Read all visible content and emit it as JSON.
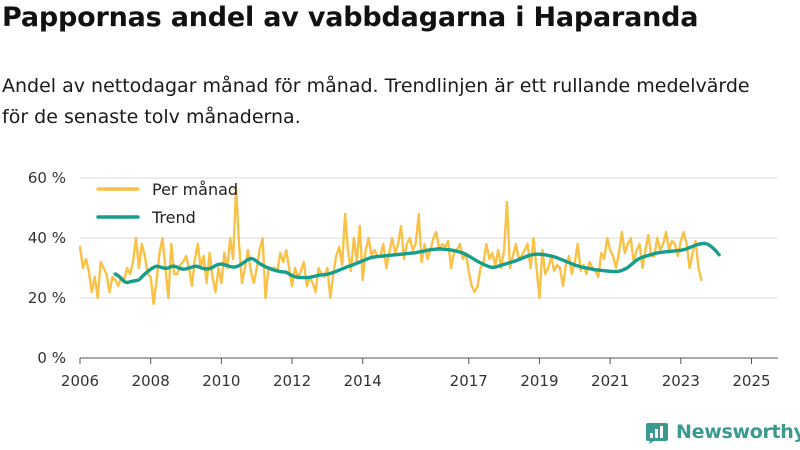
{
  "header": {
    "title": "Pappornas andel av vabbdagarna i Haparanda",
    "subtitle": "Andel av nettodagar månad för månad. Trendlinjen är ett rullande medelvärde för de senaste tolv månaderna."
  },
  "brand": {
    "name": "Newsworthy",
    "icon": "bar-chart-logo-icon",
    "color": "#3a9a8d"
  },
  "colors": {
    "monthly": "#f9c146",
    "trend": "#169d8c",
    "grid": "#dddddd",
    "axis": "#555555"
  },
  "chart_data": {
    "type": "line",
    "title": "Pappornas andel av vabbdagarna i Haparanda",
    "xlabel": "",
    "ylabel": "",
    "ylim": [
      0,
      60
    ],
    "xlim": [
      2006.0,
      2025.75
    ],
    "y_ticks": [
      0,
      20,
      40,
      60
    ],
    "y_tick_labels": [
      "0 %",
      "20 %",
      "40 %",
      "60 %"
    ],
    "x_ticks": [
      2006,
      2008,
      2010,
      2012,
      2014,
      2017,
      2019,
      2021,
      2023,
      2025
    ],
    "x_tick_labels": [
      "2006",
      "2008",
      "2010",
      "2012",
      "2014",
      "2017",
      "2019",
      "2021",
      "2023",
      "2025"
    ],
    "grid": true,
    "legend_position": "top-left",
    "series": [
      {
        "name": "Per månad",
        "x_start": 2006.0,
        "x_step": 0.08333,
        "values": [
          37,
          30,
          33,
          29,
          22,
          27,
          20,
          32,
          30,
          28,
          22,
          27,
          26,
          24,
          27,
          26,
          30,
          28,
          32,
          40,
          30,
          38,
          34,
          28,
          27,
          18,
          26,
          35,
          40,
          30,
          20,
          38,
          28,
          28,
          31,
          32,
          34,
          30,
          24,
          33,
          38,
          30,
          34,
          25,
          35,
          27,
          22,
          30,
          25,
          35,
          30,
          40,
          33,
          57,
          38,
          25,
          30,
          36,
          29,
          25,
          30,
          36,
          40,
          20,
          30,
          30,
          30,
          29,
          35,
          32,
          36,
          30,
          24,
          30,
          27,
          29,
          32,
          24,
          27,
          25,
          22,
          30,
          28,
          27,
          30,
          20,
          28,
          34,
          37,
          31,
          48,
          36,
          29,
          40,
          32,
          44,
          26,
          36,
          40,
          34,
          36,
          34,
          34,
          38,
          30,
          35,
          40,
          35,
          38,
          44,
          33,
          38,
          40,
          36,
          38,
          48,
          32,
          38,
          33,
          36,
          40,
          42,
          36,
          38,
          37,
          39,
          30,
          35,
          36,
          38,
          33,
          35,
          29,
          24,
          22,
          24,
          30,
          32,
          38,
          33,
          35,
          31,
          36,
          30,
          36,
          52,
          30,
          34,
          38,
          33,
          34,
          36,
          38,
          30,
          40,
          30,
          20,
          36,
          28,
          30,
          34,
          29,
          31,
          30,
          24,
          31,
          34,
          28,
          32,
          38,
          29,
          31,
          28,
          32,
          30,
          29,
          27,
          35,
          33,
          40,
          36,
          34,
          30,
          35,
          42,
          35,
          38,
          40,
          32,
          36,
          38,
          30,
          36,
          41,
          34,
          34,
          40,
          36,
          38,
          42,
          36,
          39,
          38,
          34,
          39,
          42,
          38,
          30,
          35,
          39,
          30,
          26
        ]
      },
      {
        "name": "Trend",
        "x_start": 2007.0,
        "x_step": 0.08333,
        "values": [
          28.0,
          27.4,
          26.5,
          25.5,
          25.1,
          25.4,
          25.6,
          25.8,
          26.0,
          27.0,
          28.0,
          28.8,
          29.6,
          30.2,
          30.6,
          30.4,
          30.1,
          29.9,
          30.0,
          30.5,
          30.6,
          30.3,
          29.8,
          29.6,
          29.7,
          30.0,
          30.3,
          30.6,
          30.5,
          30.1,
          29.8,
          29.7,
          29.8,
          30.2,
          30.8,
          31.2,
          31.3,
          31.1,
          30.8,
          30.5,
          30.3,
          30.4,
          30.8,
          31.4,
          32.1,
          32.8,
          33.2,
          32.9,
          32.2,
          31.5,
          30.9,
          30.4,
          30.0,
          29.6,
          29.3,
          29.0,
          28.8,
          28.7,
          28.6,
          28.0,
          27.5,
          27.1,
          26.9,
          26.8,
          26.8,
          26.8,
          26.9,
          27.1,
          27.3,
          27.6,
          27.7,
          27.8,
          27.9,
          28.2,
          28.5,
          28.9,
          29.3,
          29.7,
          30.1,
          30.5,
          30.8,
          31.2,
          31.6,
          32.0,
          32.4,
          32.8,
          33.2,
          33.5,
          33.7,
          33.8,
          33.9,
          34.0,
          34.1,
          34.2,
          34.3,
          34.4,
          34.5,
          34.6,
          34.7,
          34.8,
          34.9,
          35.0,
          35.1,
          35.3,
          35.5,
          35.7,
          35.9,
          36.1,
          36.2,
          36.3,
          36.4,
          36.3,
          36.2,
          36.1,
          36.0,
          35.8,
          35.6,
          35.3,
          35.0,
          34.5,
          34.0,
          33.4,
          32.8,
          32.2,
          31.7,
          31.2,
          30.8,
          30.4,
          30.2,
          30.3,
          30.6,
          30.9,
          31.2,
          31.5,
          31.8,
          32.1,
          32.4,
          32.8,
          33.2,
          33.6,
          34.0,
          34.3,
          34.5,
          34.6,
          34.6,
          34.5,
          34.4,
          34.2,
          34.0,
          33.7,
          33.4,
          33.0,
          32.6,
          32.2,
          31.8,
          31.4,
          31.0,
          30.7,
          30.4,
          30.2,
          30.0,
          29.8,
          29.6,
          29.4,
          29.3,
          29.2,
          29.1,
          29.0,
          28.9,
          28.8,
          28.8,
          28.9,
          29.2,
          29.6,
          30.2,
          31.0,
          31.8,
          32.6,
          33.2,
          33.6,
          33.9,
          34.2,
          34.5,
          34.8,
          35.0,
          35.2,
          35.3,
          35.4,
          35.5,
          35.6,
          35.7,
          35.8,
          35.9,
          36.1,
          36.4,
          36.8,
          37.2,
          37.6,
          37.9,
          38.1,
          38.2,
          38.0,
          37.4,
          36.6,
          35.6,
          34.4
        ]
      }
    ]
  }
}
